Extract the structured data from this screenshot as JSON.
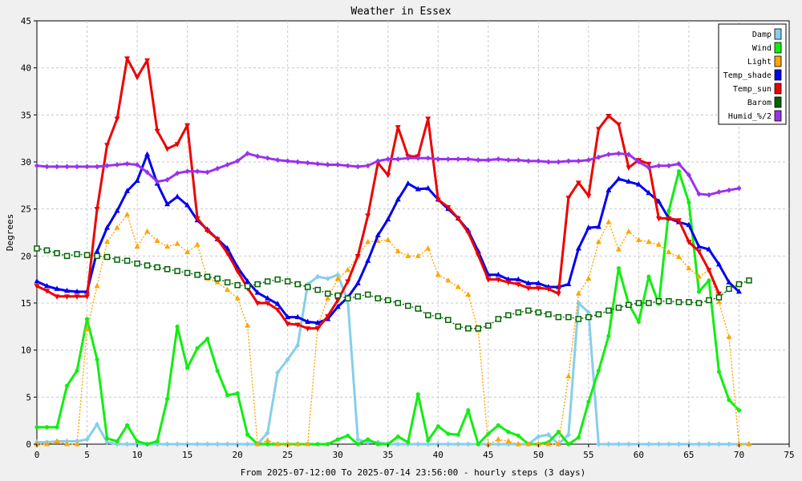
{
  "chart_data": {
    "type": "line",
    "title": "Weather in Essex",
    "xlabel": "From 2025-07-12:00 To 2025-07-14 23:56:00 - hourly steps (3 days)",
    "ylabel": "Degrees",
    "xlim": [
      0,
      75
    ],
    "ylim": [
      0,
      45
    ],
    "xticks": [
      0,
      5,
      10,
      15,
      20,
      25,
      30,
      35,
      40,
      45,
      50,
      55,
      60,
      65,
      70,
      75
    ],
    "yticks": [
      0,
      5,
      10,
      15,
      20,
      25,
      30,
      35,
      40,
      45
    ],
    "grid": true,
    "legend_position": "top-right",
    "series": [
      {
        "name": "Damp",
        "color": "#87ceeb",
        "marker": "diamond",
        "style": "solid",
        "values": [
          0.2,
          0.2,
          0.3,
          0.3,
          0.3,
          0.5,
          2.1,
          0.2,
          0,
          0,
          0,
          0,
          0,
          0,
          0,
          0,
          0,
          0,
          0,
          0,
          0,
          0,
          0,
          1.2,
          7.6,
          9,
          10.5,
          17,
          17.8,
          17.6,
          18,
          15.2,
          0.5,
          0.2,
          0.2,
          0,
          0,
          0,
          0,
          0,
          0,
          0,
          0,
          0,
          0,
          0,
          0,
          0,
          0,
          0,
          0.8,
          1,
          0,
          1,
          15,
          14,
          0,
          0,
          0,
          0,
          0,
          0,
          0,
          0,
          0,
          0,
          0,
          0,
          0,
          0,
          0,
          0
        ]
      },
      {
        "name": "Wind",
        "color": "#11ee11",
        "marker": "circle",
        "style": "solid",
        "values": [
          1.8,
          1.8,
          1.8,
          6.2,
          7.8,
          13.3,
          9,
          0.6,
          0.3,
          2,
          0.3,
          0,
          0.3,
          4.8,
          12.5,
          8.1,
          10.2,
          11.2,
          7.8,
          5.2,
          5.4,
          1,
          0,
          0,
          0,
          0,
          0,
          0,
          0,
          0,
          0.5,
          0.9,
          0,
          0.5,
          0,
          0,
          0.8,
          0.2,
          5.3,
          0.4,
          1.9,
          1.1,
          1,
          3.6,
          0,
          1.1,
          2,
          1.3,
          0.9,
          0,
          0,
          0.2,
          1.3,
          0,
          0.7,
          4.5,
          7.8,
          11.5,
          18.7,
          14.9,
          13,
          17.8,
          14.9,
          24.8,
          29,
          25.7,
          16.2,
          17.4,
          7.7,
          4.7,
          3.6
        ]
      },
      {
        "name": "Light",
        "color": "#ffa500",
        "marker": "triangle-up",
        "style": "dotted",
        "values": [
          0,
          0,
          0.3,
          0,
          0,
          12.2,
          16.8,
          21.5,
          23,
          24.4,
          21,
          22.6,
          21.6,
          21,
          21.3,
          20.4,
          21.2,
          17.6,
          17.2,
          16.4,
          15.5,
          12.6,
          0,
          0.4,
          0,
          0,
          0,
          0,
          12.6,
          15.5,
          17.6,
          18.5,
          20,
          21.5,
          21.6,
          21.7,
          20.5,
          20,
          20,
          20.8,
          18,
          17.4,
          16.7,
          15.9,
          12.1,
          0,
          0.5,
          0.3,
          0,
          0,
          0,
          0,
          0,
          7.2,
          16,
          17.6,
          21.5,
          23.6,
          20.7,
          22.6,
          21.7,
          21.5,
          21.2,
          20.4,
          19.9,
          18.7,
          17.8,
          18.5,
          15.1,
          11.4,
          0,
          0
        ]
      },
      {
        "name": "Temp_shade",
        "color": "#0000ee",
        "marker": "triangle-up",
        "style": "solid",
        "values": [
          17.3,
          16.8,
          16.5,
          16.3,
          16.2,
          16.2,
          20.5,
          23,
          24.8,
          26.9,
          28,
          30.8,
          27.7,
          25.5,
          26.3,
          25.4,
          23.8,
          22.8,
          21.8,
          20.8,
          18.8,
          17.3,
          16.1,
          15.5,
          14.9,
          13.5,
          13.5,
          13,
          12.9,
          13.3,
          14.6,
          15.6,
          17.1,
          19.5,
          22.2,
          23.9,
          26,
          27.7,
          27.1,
          27.2,
          26,
          25,
          24,
          22.7,
          20.5,
          18,
          18,
          17.5,
          17.5,
          17.1,
          17.1,
          16.7,
          16.7,
          17,
          20.8,
          23,
          23.1,
          27,
          28.2,
          27.9,
          27.6,
          26.7,
          25.8,
          24,
          23.6,
          23.3,
          21,
          20.7,
          19.1,
          17.2,
          16.2
        ]
      },
      {
        "name": "Temp_sun",
        "color": "#ee0000",
        "marker": "triangle-down",
        "style": "solid",
        "values": [
          16.8,
          16.3,
          15.7,
          15.7,
          15.7,
          15.7,
          25,
          31.8,
          34.6,
          41,
          39,
          40.8,
          33.3,
          31.4,
          31.9,
          33.9,
          24,
          22.7,
          21.8,
          20.3,
          18.4,
          16.6,
          15,
          15,
          14.3,
          12.8,
          12.7,
          12.3,
          12.3,
          13.6,
          15.3,
          17.3,
          20,
          24.3,
          29.9,
          28.6,
          33.7,
          30.6,
          30.6,
          34.6,
          26,
          25.2,
          24,
          22.5,
          20.1,
          17.5,
          17.5,
          17.2,
          17,
          16.6,
          16.6,
          16.5,
          16,
          26.2,
          27.8,
          26.4,
          33.5,
          34.9,
          34,
          29.4,
          30.2,
          29.8,
          24,
          24,
          23.8,
          21.5,
          20.5,
          18.5,
          16
        ]
      },
      {
        "name": "Barom",
        "color": "#006400",
        "marker": "square",
        "style": "dotted",
        "values": [
          20.8,
          20.6,
          20.3,
          20,
          20.2,
          20.1,
          20,
          19.9,
          19.6,
          19.5,
          19.2,
          19,
          18.8,
          18.6,
          18.4,
          18.2,
          18,
          17.8,
          17.6,
          17.2,
          16.9,
          16.8,
          17,
          17.3,
          17.5,
          17.3,
          17,
          16.7,
          16.4,
          16,
          15.8,
          15.5,
          15.7,
          15.9,
          15.5,
          15.3,
          15,
          14.7,
          14.4,
          13.7,
          13.6,
          13.2,
          12.5,
          12.3,
          12.3,
          12.6,
          13.3,
          13.7,
          14,
          14.2,
          14,
          13.8,
          13.5,
          13.5,
          13.3,
          13.5,
          13.8,
          14.2,
          14.5,
          14.8,
          15,
          15,
          15.2,
          15.2,
          15.1,
          15.1,
          15,
          15.3,
          15.6,
          16.5,
          17,
          17.4
        ]
      },
      {
        "name": "Humid_%/2",
        "color": "#9932ee",
        "marker": "diamond",
        "style": "solid",
        "values": [
          29.6,
          29.5,
          29.5,
          29.5,
          29.5,
          29.5,
          29.5,
          29.6,
          29.7,
          29.8,
          29.7,
          28.9,
          27.9,
          28.1,
          28.8,
          29,
          29,
          28.9,
          29.3,
          29.7,
          30.1,
          30.9,
          30.6,
          30.4,
          30.2,
          30.1,
          30,
          29.9,
          29.8,
          29.7,
          29.7,
          29.6,
          29.5,
          29.6,
          30.1,
          30.3,
          30.3,
          30.4,
          30.4,
          30.4,
          30.3,
          30.3,
          30.3,
          30.3,
          30.2,
          30.2,
          30.3,
          30.2,
          30.2,
          30.1,
          30.1,
          30,
          30,
          30.1,
          30.1,
          30.2,
          30.5,
          30.8,
          30.9,
          30.8,
          30,
          29.4,
          29.6,
          29.6,
          29.8,
          28.6,
          26.6,
          26.5,
          26.8,
          27,
          27.2
        ]
      }
    ]
  }
}
